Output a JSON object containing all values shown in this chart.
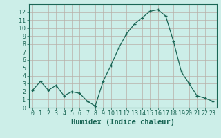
{
  "x": [
    0,
    1,
    2,
    3,
    4,
    5,
    6,
    7,
    8,
    9,
    10,
    11,
    12,
    13,
    14,
    15,
    16,
    17,
    18,
    19,
    20,
    21,
    22,
    23
  ],
  "y": [
    2.2,
    3.3,
    2.2,
    2.8,
    1.5,
    2.0,
    1.8,
    0.8,
    0.2,
    3.3,
    5.3,
    7.5,
    9.3,
    10.5,
    11.3,
    12.1,
    12.3,
    11.5,
    8.3,
    4.5,
    3.0,
    1.5,
    1.2,
    0.8
  ],
  "line_color": "#1a6655",
  "marker": "+",
  "bg_color": "#cceee8",
  "grid_color": "#b8b0a8",
  "xlabel": "Humidex (Indice chaleur)",
  "xlim": [
    -0.5,
    23.5
  ],
  "ylim": [
    0,
    13
  ],
  "yticks": [
    0,
    1,
    2,
    3,
    4,
    5,
    6,
    7,
    8,
    9,
    10,
    11,
    12
  ],
  "xticks": [
    0,
    1,
    2,
    3,
    4,
    5,
    6,
    7,
    8,
    9,
    10,
    11,
    12,
    13,
    14,
    15,
    16,
    17,
    18,
    19,
    20,
    21,
    22,
    23
  ],
  "tick_label_fontsize": 6,
  "xlabel_fontsize": 7.5
}
